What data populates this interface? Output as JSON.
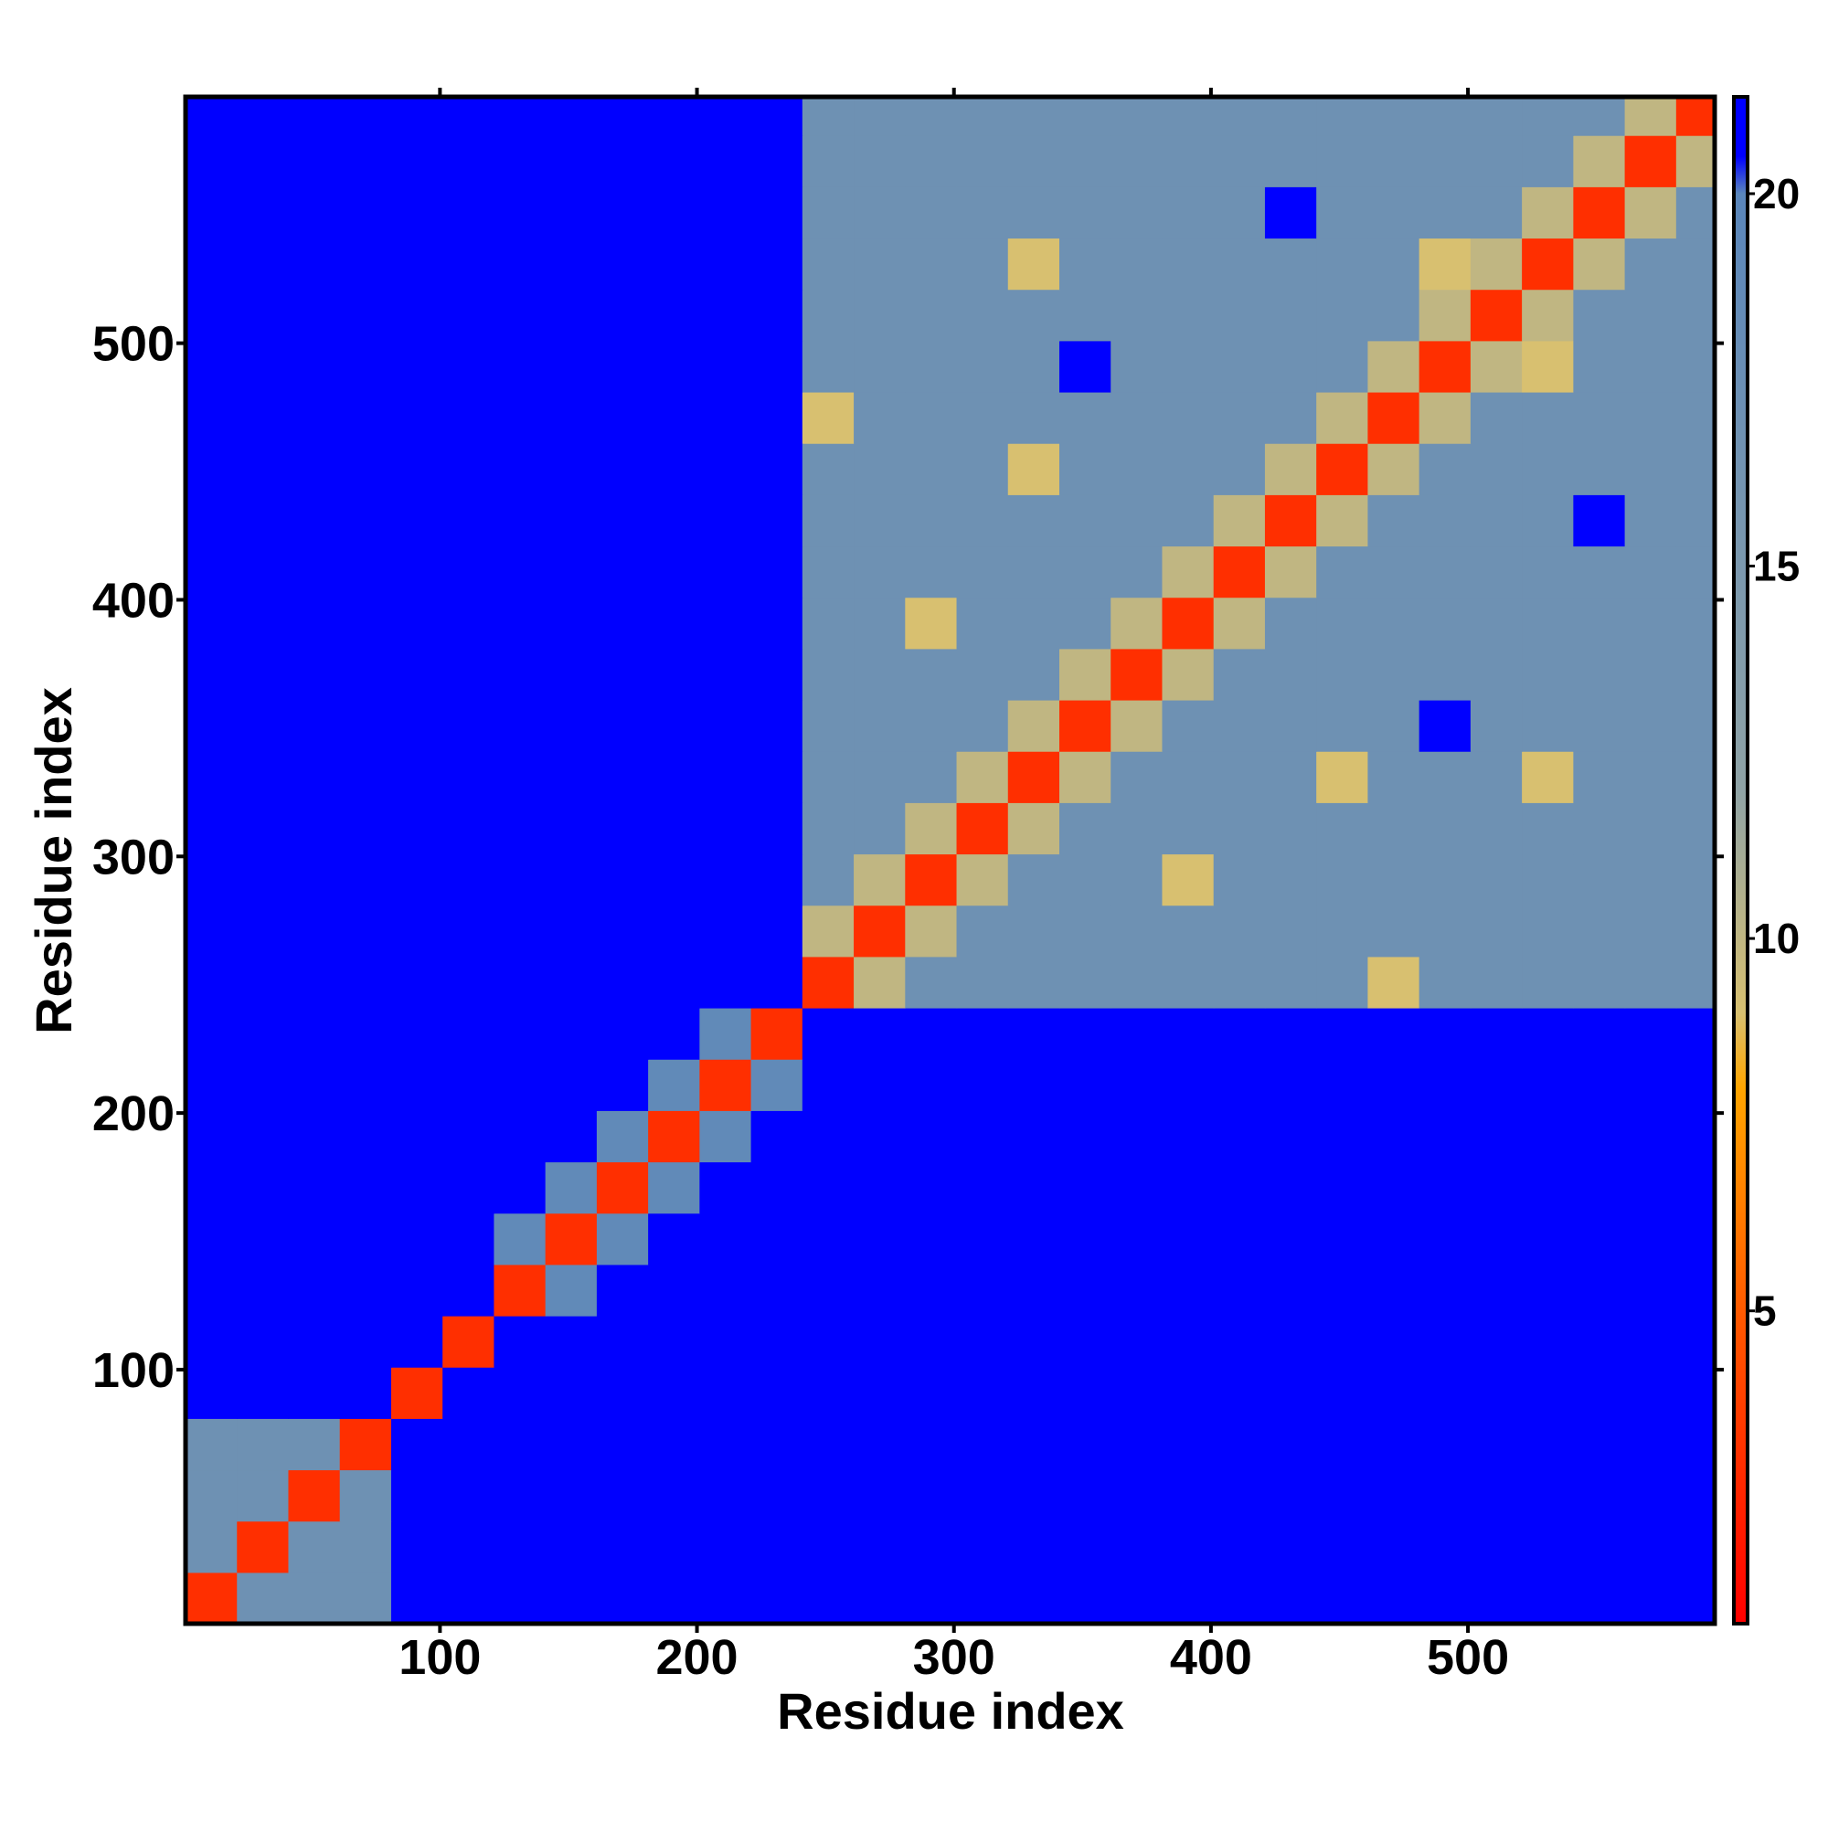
{
  "chart_data": {
    "type": "heatmap",
    "x_label": "Residue index",
    "y_label": "Residue index",
    "xlim": [
      1,
      596
    ],
    "ylim": [
      1,
      596
    ],
    "xticks": [
      100,
      200,
      300,
      400,
      500
    ],
    "yticks": [
      100,
      200,
      300,
      400,
      500
    ],
    "bin_edges": [
      1,
      21,
      41,
      61,
      81,
      101,
      121,
      141,
      161,
      181,
      201,
      221,
      241,
      261,
      281,
      301,
      321,
      341,
      361,
      381,
      401,
      421,
      441,
      461,
      481,
      501,
      521,
      541,
      561,
      581,
      596
    ],
    "colorscale": [
      [
        0.8,
        "#ff0000"
      ],
      [
        5,
        "#ff5a00"
      ],
      [
        8,
        "#ffa500"
      ],
      [
        9,
        "#d8c070"
      ],
      [
        12,
        "#8fa3a6"
      ],
      [
        20,
        "#5a86bb"
      ],
      [
        20.5,
        "#0000ff"
      ],
      [
        21.3,
        "#0000ff"
      ]
    ],
    "colorbar": {
      "lim": [
        0.8,
        21.3
      ],
      "ticks": [
        5,
        10,
        15,
        20
      ]
    },
    "matrix": [
      [
        3,
        17,
        17,
        17,
        21,
        21,
        21,
        21,
        21,
        21,
        21,
        21,
        21,
        21,
        21,
        21,
        21,
        21,
        21,
        21,
        21,
        21,
        21,
        21,
        21,
        21,
        21,
        21,
        21,
        21
      ],
      [
        17,
        3,
        17,
        17,
        21,
        21,
        21,
        21,
        21,
        21,
        21,
        21,
        21,
        21,
        21,
        21,
        21,
        21,
        21,
        21,
        21,
        21,
        21,
        21,
        21,
        21,
        21,
        21,
        21,
        21
      ],
      [
        17,
        17,
        3,
        17,
        21,
        21,
        21,
        21,
        21,
        21,
        21,
        21,
        21,
        21,
        21,
        21,
        21,
        21,
        21,
        21,
        21,
        21,
        21,
        21,
        21,
        21,
        21,
        21,
        21,
        21
      ],
      [
        17,
        17,
        17,
        3,
        21,
        21,
        21,
        21,
        21,
        21,
        21,
        21,
        21,
        21,
        21,
        21,
        21,
        21,
        21,
        21,
        21,
        21,
        21,
        21,
        21,
        21,
        21,
        21,
        21,
        21
      ],
      [
        21,
        21,
        21,
        21,
        3,
        21,
        21,
        21,
        21,
        21,
        21,
        21,
        21,
        21,
        21,
        21,
        21,
        21,
        21,
        21,
        21,
        21,
        21,
        21,
        21,
        21,
        21,
        21,
        21,
        21
      ],
      [
        21,
        21,
        21,
        21,
        21,
        3,
        21,
        21,
        21,
        21,
        21,
        21,
        21,
        21,
        21,
        21,
        21,
        21,
        21,
        21,
        21,
        21,
        21,
        21,
        21,
        21,
        21,
        21,
        21,
        21
      ],
      [
        21,
        21,
        21,
        21,
        21,
        21,
        3,
        19,
        21,
        21,
        21,
        21,
        21,
        21,
        21,
        21,
        21,
        21,
        21,
        21,
        21,
        21,
        21,
        21,
        21,
        21,
        21,
        21,
        21,
        21
      ],
      [
        21,
        21,
        21,
        21,
        21,
        21,
        19,
        3,
        19,
        21,
        21,
        21,
        21,
        21,
        21,
        21,
        21,
        21,
        21,
        21,
        21,
        21,
        21,
        21,
        21,
        21,
        21,
        21,
        21,
        21
      ],
      [
        21,
        21,
        21,
        21,
        21,
        21,
        21,
        19,
        3,
        19,
        21,
        21,
        21,
        21,
        21,
        21,
        21,
        21,
        21,
        21,
        21,
        21,
        21,
        21,
        21,
        21,
        21,
        21,
        21,
        21
      ],
      [
        21,
        21,
        21,
        21,
        21,
        21,
        21,
        21,
        19,
        3,
        19,
        21,
        21,
        21,
        21,
        21,
        21,
        21,
        21,
        21,
        21,
        21,
        21,
        21,
        21,
        21,
        21,
        21,
        21,
        21
      ],
      [
        21,
        21,
        21,
        21,
        21,
        21,
        21,
        21,
        21,
        19,
        3,
        19,
        21,
        21,
        21,
        21,
        21,
        21,
        21,
        21,
        21,
        21,
        21,
        21,
        21,
        21,
        21,
        21,
        21,
        21
      ],
      [
        21,
        21,
        21,
        21,
        21,
        21,
        21,
        21,
        21,
        21,
        19,
        3,
        21,
        21,
        21,
        21,
        21,
        21,
        21,
        21,
        21,
        21,
        21,
        21,
        21,
        21,
        21,
        21,
        21,
        21
      ],
      [
        21,
        21,
        21,
        21,
        21,
        21,
        21,
        21,
        21,
        21,
        21,
        21,
        3,
        10,
        17,
        17,
        17,
        17,
        17,
        17,
        17,
        17,
        17,
        9,
        17,
        17,
        17,
        17,
        17,
        17
      ],
      [
        21,
        21,
        21,
        21,
        21,
        21,
        21,
        21,
        21,
        21,
        21,
        21,
        10,
        3,
        10,
        17,
        17,
        17,
        17,
        17,
        17,
        17,
        17,
        17,
        17,
        17,
        17,
        17,
        17,
        17
      ],
      [
        21,
        21,
        21,
        21,
        21,
        21,
        21,
        21,
        21,
        21,
        21,
        21,
        17,
        10,
        3,
        10,
        17,
        17,
        17,
        9,
        17,
        17,
        17,
        17,
        17,
        17,
        17,
        17,
        17,
        17
      ],
      [
        21,
        21,
        21,
        21,
        21,
        21,
        21,
        21,
        21,
        21,
        21,
        21,
        17,
        17,
        10,
        3,
        10,
        17,
        17,
        17,
        17,
        17,
        17,
        17,
        17,
        17,
        17,
        17,
        17,
        17
      ],
      [
        21,
        21,
        21,
        21,
        21,
        21,
        21,
        21,
        21,
        21,
        21,
        21,
        17,
        17,
        17,
        10,
        3,
        10,
        17,
        17,
        17,
        17,
        9,
        17,
        17,
        17,
        9,
        17,
        17,
        17
      ],
      [
        21,
        21,
        21,
        21,
        21,
        21,
        21,
        21,
        21,
        21,
        21,
        21,
        17,
        17,
        17,
        17,
        10,
        3,
        10,
        17,
        17,
        17,
        17,
        17,
        21,
        17,
        17,
        17,
        17,
        17
      ],
      [
        21,
        21,
        21,
        21,
        21,
        21,
        21,
        21,
        21,
        21,
        21,
        21,
        17,
        17,
        17,
        17,
        17,
        10,
        3,
        10,
        17,
        17,
        17,
        17,
        17,
        17,
        17,
        17,
        17,
        17
      ],
      [
        21,
        21,
        21,
        21,
        21,
        21,
        21,
        21,
        21,
        21,
        21,
        21,
        17,
        17,
        9,
        17,
        17,
        17,
        10,
        3,
        10,
        17,
        17,
        17,
        17,
        17,
        17,
        17,
        17,
        17
      ],
      [
        21,
        21,
        21,
        21,
        21,
        21,
        21,
        21,
        21,
        21,
        21,
        21,
        17,
        17,
        17,
        17,
        17,
        17,
        17,
        10,
        3,
        10,
        17,
        17,
        17,
        17,
        17,
        17,
        17,
        17
      ],
      [
        21,
        21,
        21,
        21,
        21,
        21,
        21,
        21,
        21,
        21,
        21,
        21,
        17,
        17,
        17,
        17,
        17,
        17,
        17,
        17,
        10,
        3,
        10,
        17,
        17,
        17,
        17,
        21,
        17,
        17
      ],
      [
        21,
        21,
        21,
        21,
        21,
        21,
        21,
        21,
        21,
        21,
        21,
        21,
        17,
        17,
        17,
        17,
        9,
        17,
        17,
        17,
        17,
        10,
        3,
        10,
        17,
        17,
        17,
        17,
        17,
        17
      ],
      [
        21,
        21,
        21,
        21,
        21,
        21,
        21,
        21,
        21,
        21,
        21,
        21,
        9,
        17,
        17,
        17,
        17,
        17,
        17,
        17,
        17,
        17,
        10,
        3,
        10,
        17,
        17,
        17,
        17,
        17
      ],
      [
        21,
        21,
        21,
        21,
        21,
        21,
        21,
        21,
        21,
        21,
        21,
        21,
        17,
        17,
        17,
        17,
        17,
        21,
        17,
        17,
        17,
        17,
        17,
        10,
        3,
        10,
        9,
        17,
        17,
        17
      ],
      [
        21,
        21,
        21,
        21,
        21,
        21,
        21,
        21,
        21,
        21,
        21,
        21,
        17,
        17,
        17,
        17,
        17,
        17,
        17,
        17,
        17,
        17,
        17,
        17,
        10,
        3,
        10,
        17,
        17,
        17
      ],
      [
        21,
        21,
        21,
        21,
        21,
        21,
        21,
        21,
        21,
        21,
        21,
        21,
        17,
        17,
        17,
        17,
        9,
        17,
        17,
        17,
        17,
        17,
        17,
        17,
        9,
        10,
        3,
        10,
        17,
        17
      ],
      [
        21,
        21,
        21,
        21,
        21,
        21,
        21,
        21,
        21,
        21,
        21,
        21,
        17,
        17,
        17,
        17,
        17,
        17,
        17,
        17,
        17,
        21,
        17,
        17,
        17,
        17,
        10,
        3,
        10,
        17
      ],
      [
        21,
        21,
        21,
        21,
        21,
        21,
        21,
        21,
        21,
        21,
        21,
        21,
        17,
        17,
        17,
        17,
        17,
        17,
        17,
        17,
        17,
        17,
        17,
        17,
        17,
        17,
        17,
        10,
        3,
        10
      ],
      [
        21,
        21,
        21,
        21,
        21,
        21,
        21,
        21,
        21,
        21,
        21,
        21,
        17,
        17,
        17,
        17,
        17,
        17,
        17,
        17,
        17,
        17,
        17,
        17,
        17,
        17,
        17,
        17,
        10,
        3
      ]
    ]
  }
}
